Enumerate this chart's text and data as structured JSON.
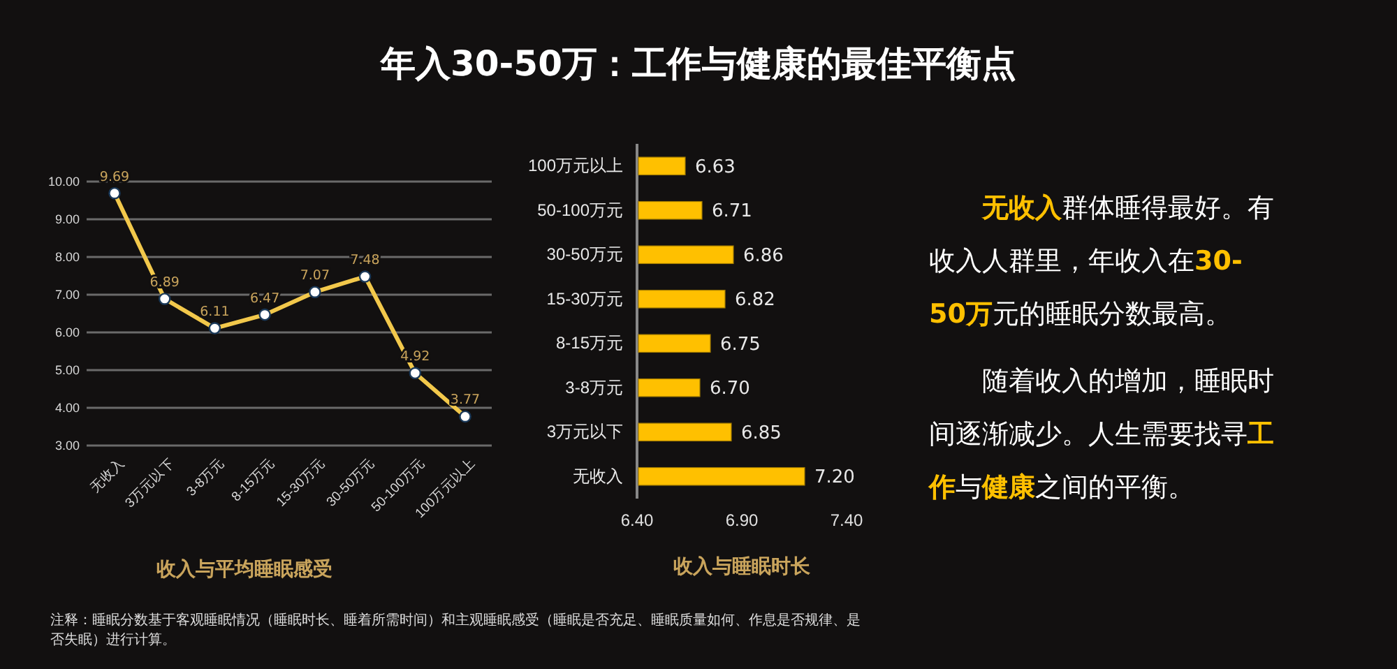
{
  "chart_data": [
    {
      "type": "line",
      "title": "年入30-50万：工作与健康的最佳平衡点",
      "xlabel": "收入与平均睡眠感受",
      "categories": [
        "无收入",
        "3万元以下",
        "3-8万元",
        "8-15万元",
        "15-30万元",
        "30-50万元",
        "50-100万元",
        "100万元以上"
      ],
      "series": [
        {
          "color": "#f2c84b",
          "values": [
            9.69,
            6.89,
            6.11,
            6.47,
            7.07,
            7.48,
            4.92,
            3.77
          ]
        }
      ],
      "ylim": [
        3,
        10
      ],
      "yticks": [
        {
          "value": 3,
          "label": "3.00"
        },
        {
          "value": 4,
          "label": "4.00"
        },
        {
          "value": 5,
          "label": "5.00"
        },
        {
          "value": 6,
          "label": "6.00"
        },
        {
          "value": 7,
          "label": "7.00"
        },
        {
          "value": 8,
          "label": "8.00"
        },
        {
          "value": 9,
          "label": "9.00"
        },
        {
          "value": 10,
          "label": "10.00"
        }
      ],
      "grid": "y",
      "marker": "circle",
      "data_labels": true,
      "annotations": [
        "注释：睡眠分数基于客观睡眠情况（睡眠时长、睡着所需时间）和主观睡眠感受（睡眠是否充足、睡眠质量如何、作息是否规律、是否失眠）进行计算。"
      ]
    },
    {
      "type": "bar",
      "orientation": "horizontal",
      "xlabel": "收入与睡眠时长",
      "categories": [
        "100万元以上",
        "50-100万元",
        "30-50万元",
        "15-30万元",
        "8-15万元",
        "3-8万元",
        "3万元以下",
        "无收入"
      ],
      "values": [
        6.63,
        6.71,
        6.86,
        6.82,
        6.75,
        6.7,
        6.85,
        7.2
      ],
      "color": "#ffc000",
      "value_labels": [
        "6.63",
        "6.71",
        "6.86",
        "6.82",
        "6.75",
        "6.70",
        "6.85",
        "7.20"
      ],
      "xlim": [
        6.4,
        7.4
      ],
      "xticks": [
        {
          "value": 6.4,
          "label": "6.40"
        },
        {
          "value": 6.9,
          "label": "6.90"
        },
        {
          "value": 7.4,
          "label": "7.40"
        }
      ],
      "grid": false
    },
    {
      "type": "other",
      "annotations": [
        "无收入",
        "群体睡得最好。有收入人群里，年收入在",
        "30-50万",
        "元的睡眠分数最高。"
      ],
      "colors": [
        "#ffc000",
        "#ffffff",
        "#ffc000",
        "#ffffff"
      ]
    },
    {
      "type": "other",
      "annotations": [
        "随着收入的增加，睡眠时间逐渐减少。人生需要找寻",
        "工作",
        "与",
        "健康",
        "之间的平衡。"
      ],
      "colors": [
        "#ffffff",
        "#ffc000",
        "#ffffff",
        "#ffc000",
        "#ffffff"
      ]
    }
  ]
}
